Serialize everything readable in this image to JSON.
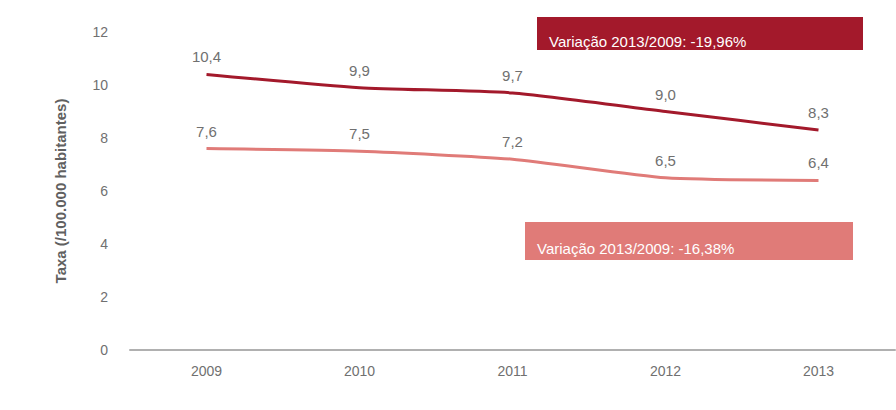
{
  "chart_data": {
    "type": "line",
    "y_label": "Taxa (/100.000 habitantes)",
    "categories": [
      "2009",
      "2010",
      "2011",
      "2012",
      "2013"
    ],
    "series": [
      {
        "color": "#a3192b",
        "values": [
          10.4,
          9.9,
          9.7,
          9.0,
          8.3
        ],
        "value_labels": [
          "10,4",
          "9,9",
          "9,7",
          "9,0",
          "8,3"
        ]
      },
      {
        "color": "#e07b78",
        "values": [
          7.6,
          7.5,
          7.2,
          6.5,
          6.4
        ],
        "value_labels": [
          "7,6",
          "7,5",
          "7,2",
          "6,5",
          "6,4"
        ]
      }
    ],
    "annotations": [
      {
        "text": "Variação 2013/2009: -19,96%",
        "color": "#a3192b"
      },
      {
        "text": "Variação 2013/2009: -16,38%",
        "color": "#e07b78"
      }
    ],
    "ylim": [
      0,
      12
    ],
    "yticks": [
      0,
      2,
      4,
      6,
      8,
      10,
      12
    ],
    "grid": false,
    "data_labels": true
  }
}
